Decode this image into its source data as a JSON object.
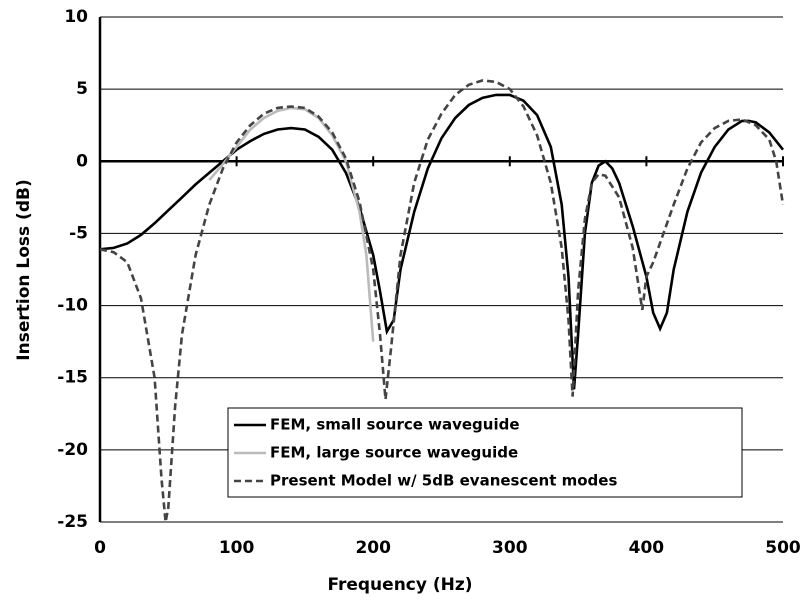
{
  "chart_data": {
    "type": "line",
    "xlabel": "Frequency (Hz)",
    "ylabel": "Insertion Loss (dB)",
    "xlim": [
      0,
      500
    ],
    "xticks": [
      0,
      100,
      200,
      300,
      400,
      500
    ],
    "ylim": [
      -25,
      10
    ],
    "yticks": [
      10,
      5,
      0,
      -5,
      -10,
      -15,
      -20,
      -25
    ],
    "grid": true,
    "series": [
      {
        "name": "FEM, small source waveguide",
        "color": "#000000",
        "style": "solid",
        "x": [
          0,
          10,
          20,
          30,
          40,
          50,
          60,
          70,
          80,
          90,
          100,
          110,
          120,
          130,
          140,
          150,
          160,
          170,
          180,
          190,
          200,
          205,
          210,
          215,
          220,
          230,
          240,
          250,
          260,
          270,
          280,
          290,
          300,
          310,
          320,
          330,
          338,
          343,
          347,
          350,
          355,
          360,
          365,
          370,
          375,
          380,
          390,
          400,
          405,
          410,
          415,
          420,
          430,
          440,
          450,
          460,
          470,
          475,
          480,
          490,
          500
        ],
        "values": [
          -6.1,
          -6,
          -5.7,
          -5.1,
          -4.3,
          -3.4,
          -2.5,
          -1.6,
          -0.8,
          0,
          0.8,
          1.4,
          1.9,
          2.2,
          2.3,
          2.2,
          1.7,
          0.8,
          -0.8,
          -3.2,
          -6.5,
          -9,
          -11.8,
          -11,
          -7.5,
          -3.5,
          -0.5,
          1.6,
          3,
          3.9,
          4.4,
          4.6,
          4.6,
          4.2,
          3.2,
          1,
          -3,
          -8,
          -15.8,
          -12,
          -5,
          -1.5,
          -0.3,
          0,
          -0.5,
          -1.5,
          -4.5,
          -8,
          -10.5,
          -11.6,
          -10.5,
          -7.5,
          -3.5,
          -0.8,
          1,
          2.2,
          2.8,
          2.8,
          2.7,
          2,
          0.8
        ]
      },
      {
        "name": "FEM, large source waveguide",
        "color": "#bbbbbb",
        "style": "solid",
        "x": [
          80,
          90,
          100,
          110,
          120,
          130,
          140,
          150,
          160,
          170,
          180,
          190,
          195,
          200
        ],
        "values": [
          -1.3,
          -0.2,
          1,
          2.2,
          3,
          3.5,
          3.7,
          3.6,
          3,
          1.8,
          0,
          -3.5,
          -6.5,
          -12.5
        ]
      },
      {
        "name": "Present Model w/ 5dB evanescent modes",
        "color": "#444444",
        "style": "dashed",
        "x": [
          0,
          10,
          20,
          30,
          40,
          45,
          48,
          50,
          55,
          60,
          70,
          80,
          90,
          100,
          110,
          120,
          130,
          140,
          150,
          160,
          170,
          180,
          190,
          200,
          205,
          209,
          213,
          220,
          230,
          240,
          250,
          260,
          270,
          280,
          290,
          300,
          310,
          320,
          330,
          338,
          343,
          346,
          350,
          355,
          360,
          365,
          370,
          380,
          390,
          397,
          400,
          405,
          420,
          430,
          440,
          450,
          460,
          470,
          480,
          490,
          495,
          500
        ],
        "values": [
          -6.1,
          -6.3,
          -7,
          -9.5,
          -15,
          -22,
          -25,
          -24,
          -17,
          -12,
          -6.5,
          -3,
          -0.5,
          1.3,
          2.5,
          3.3,
          3.7,
          3.8,
          3.7,
          3.1,
          2,
          0.2,
          -2.8,
          -7.5,
          -12,
          -16.5,
          -13,
          -6.5,
          -1.5,
          1.5,
          3.3,
          4.6,
          5.3,
          5.6,
          5.5,
          5,
          3.8,
          1.8,
          -1.5,
          -6,
          -11,
          -16.3,
          -9,
          -4,
          -1.5,
          -0.9,
          -1,
          -2.5,
          -6,
          -10.3,
          -8,
          -7,
          -3,
          -0.5,
          1.3,
          2.3,
          2.8,
          2.9,
          2.5,
          1.5,
          0,
          -3
        ]
      }
    ]
  }
}
